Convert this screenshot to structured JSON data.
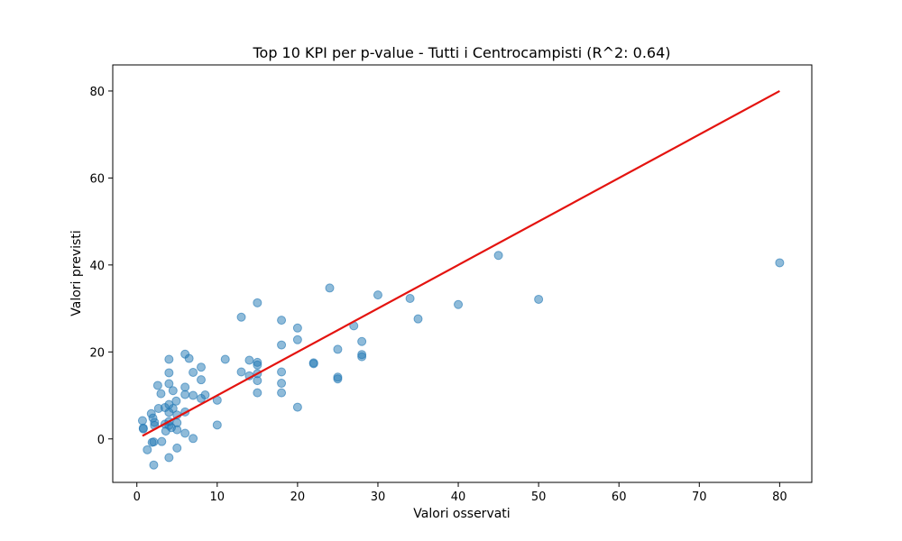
{
  "chart_data": {
    "type": "scatter",
    "title": "Top 10 KPI per p-value - Tutti i Centrocampisti (R^2: 0.64)",
    "xlabel": "Valori osservati",
    "ylabel": "Valori previsti",
    "xlim": [
      -3,
      84
    ],
    "ylim": [
      -10,
      86
    ],
    "xticks": [
      0,
      10,
      20,
      30,
      40,
      50,
      60,
      70,
      80
    ],
    "yticks": [
      0,
      20,
      40,
      60,
      80
    ],
    "grid": false,
    "colors": {
      "points": "#1f77b4",
      "fit_line": "#e4130f"
    },
    "points": [
      {
        "x": 0.7,
        "y": 4.2
      },
      {
        "x": 0.8,
        "y": 2.5
      },
      {
        "x": 0.8,
        "y": 2.3
      },
      {
        "x": 1.3,
        "y": -2.5
      },
      {
        "x": 1.8,
        "y": 5.8
      },
      {
        "x": 1.9,
        "y": -0.8
      },
      {
        "x": 2.0,
        "y": 4.8
      },
      {
        "x": 2.1,
        "y": -6.0
      },
      {
        "x": 2.1,
        "y": -0.7
      },
      {
        "x": 2.2,
        "y": 3.8
      },
      {
        "x": 2.2,
        "y": 3.1
      },
      {
        "x": 2.6,
        "y": 12.3
      },
      {
        "x": 2.7,
        "y": 7.0
      },
      {
        "x": 3.0,
        "y": 10.4
      },
      {
        "x": 3.1,
        "y": -0.6
      },
      {
        "x": 3.5,
        "y": 3.4
      },
      {
        "x": 3.5,
        "y": 7.2
      },
      {
        "x": 3.6,
        "y": 1.8
      },
      {
        "x": 4.0,
        "y": 18.3
      },
      {
        "x": 4.0,
        "y": 15.2
      },
      {
        "x": 4.0,
        "y": 12.7
      },
      {
        "x": 4.0,
        "y": 7.9
      },
      {
        "x": 4.0,
        "y": 6.1
      },
      {
        "x": 4.0,
        "y": 4.0
      },
      {
        "x": 4.0,
        "y": 3.1
      },
      {
        "x": 4.0,
        "y": -4.3
      },
      {
        "x": 4.3,
        "y": 2.6
      },
      {
        "x": 4.5,
        "y": 11.1
      },
      {
        "x": 4.5,
        "y": 7.0
      },
      {
        "x": 4.9,
        "y": 8.7
      },
      {
        "x": 5.0,
        "y": 5.5
      },
      {
        "x": 5.0,
        "y": 3.7
      },
      {
        "x": 5.0,
        "y": 2.1
      },
      {
        "x": 5.0,
        "y": -2.1
      },
      {
        "x": 6.0,
        "y": 19.5
      },
      {
        "x": 6.0,
        "y": 11.9
      },
      {
        "x": 6.0,
        "y": 10.2
      },
      {
        "x": 6.0,
        "y": 6.2
      },
      {
        "x": 6.0,
        "y": 1.3
      },
      {
        "x": 6.5,
        "y": 18.5
      },
      {
        "x": 7.0,
        "y": 15.3
      },
      {
        "x": 7.0,
        "y": 10.0
      },
      {
        "x": 7.0,
        "y": 0.1
      },
      {
        "x": 8.0,
        "y": 16.5
      },
      {
        "x": 8.0,
        "y": 13.6
      },
      {
        "x": 8.0,
        "y": 9.3
      },
      {
        "x": 8.5,
        "y": 10.1
      },
      {
        "x": 10.0,
        "y": 8.9
      },
      {
        "x": 10.0,
        "y": 3.2
      },
      {
        "x": 11.0,
        "y": 18.3
      },
      {
        "x": 13.0,
        "y": 28.0
      },
      {
        "x": 13.0,
        "y": 15.4
      },
      {
        "x": 14.0,
        "y": 18.1
      },
      {
        "x": 14.0,
        "y": 14.5
      },
      {
        "x": 15.0,
        "y": 31.3
      },
      {
        "x": 15.0,
        "y": 17.6
      },
      {
        "x": 15.0,
        "y": 17.0
      },
      {
        "x": 15.0,
        "y": 15.0
      },
      {
        "x": 15.0,
        "y": 13.4
      },
      {
        "x": 15.0,
        "y": 10.6
      },
      {
        "x": 18.0,
        "y": 27.3
      },
      {
        "x": 18.0,
        "y": 21.6
      },
      {
        "x": 18.0,
        "y": 15.4
      },
      {
        "x": 18.0,
        "y": 12.8
      },
      {
        "x": 18.0,
        "y": 10.6
      },
      {
        "x": 20.0,
        "y": 25.5
      },
      {
        "x": 20.0,
        "y": 22.8
      },
      {
        "x": 20.0,
        "y": 7.3
      },
      {
        "x": 22.0,
        "y": 17.5
      },
      {
        "x": 22.0,
        "y": 17.3
      },
      {
        "x": 24.0,
        "y": 34.7
      },
      {
        "x": 25.0,
        "y": 20.6
      },
      {
        "x": 25.0,
        "y": 14.2
      },
      {
        "x": 25.0,
        "y": 13.8
      },
      {
        "x": 27.0,
        "y": 26.0
      },
      {
        "x": 28.0,
        "y": 22.4
      },
      {
        "x": 28.0,
        "y": 19.4
      },
      {
        "x": 28.0,
        "y": 18.9
      },
      {
        "x": 30.0,
        "y": 33.1
      },
      {
        "x": 34.0,
        "y": 32.3
      },
      {
        "x": 35.0,
        "y": 27.6
      },
      {
        "x": 40.0,
        "y": 30.9
      },
      {
        "x": 45.0,
        "y": 42.2
      },
      {
        "x": 50.0,
        "y": 32.1
      },
      {
        "x": 80.0,
        "y": 40.5
      }
    ],
    "fit_line": [
      {
        "x": 0.7,
        "y": 0.7
      },
      {
        "x": 80.0,
        "y": 80.0
      }
    ]
  }
}
